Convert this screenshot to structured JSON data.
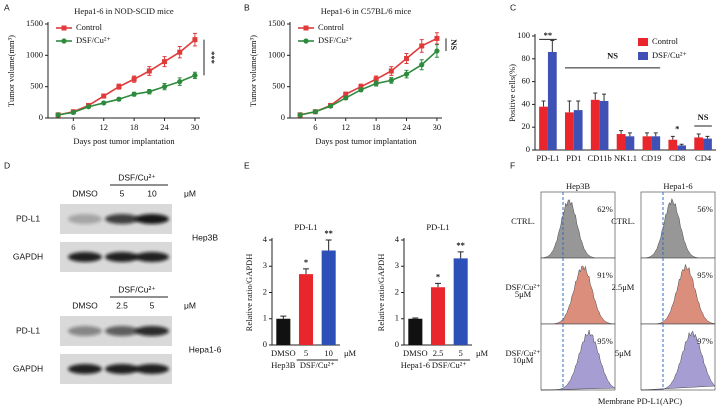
{
  "panel_labels": [
    "A",
    "B",
    "C",
    "D",
    "E",
    "F"
  ],
  "chart_data": [
    {
      "type": "line",
      "title": "Hepa1-6 in NOD-SCID mice",
      "xlabel": "Days post tumor implantation",
      "ylabel": "Tumor volume(mm³)",
      "x": [
        3,
        6,
        9,
        12,
        15,
        18,
        21,
        24,
        27,
        30
      ],
      "xlim": [
        1,
        31
      ],
      "xticks": [
        6,
        12,
        18,
        24,
        30
      ],
      "ylim": [
        0,
        1500
      ],
      "yticks": [
        0,
        500,
        1000,
        1500
      ],
      "legend": "upper left",
      "annotation": "***",
      "series": [
        {
          "name": "Control",
          "color": "#e03a3a",
          "marker": "square",
          "values": [
            50,
            100,
            200,
            350,
            500,
            620,
            750,
            900,
            1050,
            1250
          ],
          "errors": [
            10,
            15,
            20,
            30,
            40,
            50,
            70,
            80,
            90,
            100
          ]
        },
        {
          "name": "DSF/Cu²⁺",
          "color": "#2e8b3e",
          "marker": "circle",
          "values": [
            50,
            90,
            180,
            240,
            300,
            380,
            420,
            500,
            580,
            680
          ],
          "errors": [
            8,
            10,
            15,
            20,
            25,
            30,
            35,
            50,
            60,
            50
          ]
        }
      ]
    },
    {
      "type": "line",
      "title": "Hepa1-6 in C57BL/6 mice",
      "xlabel": "Days post tumor implantation",
      "ylabel": "Tumor volume(mm³)",
      "x": [
        3,
        6,
        9,
        12,
        15,
        18,
        21,
        24,
        27,
        30
      ],
      "xlim": [
        1,
        31
      ],
      "xticks": [
        6,
        12,
        18,
        24,
        30
      ],
      "ylim": [
        0,
        1500
      ],
      "yticks": [
        0,
        500,
        1000,
        1500
      ],
      "legend": "upper left",
      "annotation": "NS",
      "series": [
        {
          "name": "Control",
          "color": "#e03a3a",
          "marker": "square",
          "values": [
            50,
            100,
            200,
            380,
            500,
            620,
            750,
            950,
            1150,
            1270
          ],
          "errors": [
            10,
            15,
            20,
            30,
            40,
            50,
            70,
            80,
            100,
            90
          ]
        },
        {
          "name": "DSF/Cu²⁺",
          "color": "#2e8b3e",
          "marker": "circle",
          "values": [
            50,
            100,
            190,
            320,
            450,
            550,
            600,
            700,
            850,
            1070
          ],
          "errors": [
            8,
            10,
            15,
            25,
            30,
            40,
            45,
            60,
            80,
            100
          ]
        }
      ]
    },
    {
      "type": "grouped_bar",
      "ylabel": "Positive cells(%)",
      "categories": [
        "PD-L1",
        "PD1",
        "CD11b",
        "NK1.1",
        "CD19",
        "CD8",
        "CD4"
      ],
      "ylim": [
        0,
        100
      ],
      "yticks": [
        0,
        20,
        40,
        60,
        80,
        100
      ],
      "legend": "upper right",
      "annotations": [
        "**",
        "NS",
        "*",
        "NS"
      ],
      "series": [
        {
          "name": "Control",
          "color": "#e8262c",
          "values": [
            38,
            33,
            44,
            14,
            12,
            9,
            11
          ],
          "errors": [
            5,
            10,
            6,
            3,
            3,
            3,
            3
          ]
        },
        {
          "name": "DSF/Cu²⁺",
          "color": "#3f51b5",
          "values": [
            86,
            35,
            43,
            12,
            12,
            4,
            10
          ],
          "errors": [
            10,
            8,
            6,
            3,
            3,
            1,
            2
          ]
        }
      ]
    },
    {
      "type": "bar",
      "title": "PD-L1",
      "ylabel": "Relative ratio/GAPDH",
      "categories": [
        "DMSO",
        "5",
        "10"
      ],
      "unit": "μM",
      "cell_line": "Hep3B",
      "treatment": "DSF/Cu²⁺",
      "values": [
        1.0,
        2.7,
        3.6
      ],
      "errors": [
        0.1,
        0.2,
        0.4
      ],
      "colors": [
        "#111111",
        "#e8262c",
        "#2d4fb8"
      ],
      "value_annotations": [
        null,
        "*",
        "**"
      ],
      "ylim": [
        0,
        4
      ],
      "yticks": [
        0,
        1,
        2,
        3,
        4
      ]
    },
    {
      "type": "bar",
      "title": "PD-L1",
      "ylabel": "Relative ratio/GAPDH",
      "categories": [
        "DMSO",
        "2.5",
        "5"
      ],
      "unit": "μM",
      "cell_line": "Hepa1-6",
      "treatment": "DSF/Cu²⁺",
      "values": [
        1.0,
        2.2,
        3.3
      ],
      "errors": [
        0.03,
        0.15,
        0.25
      ],
      "colors": [
        "#111111",
        "#e8262c",
        "#2d4fb8"
      ],
      "value_annotations": [
        null,
        "*",
        "**"
      ],
      "ylim": [
        0,
        4
      ],
      "yticks": [
        0,
        1,
        2,
        3,
        4
      ]
    }
  ],
  "blots": [
    {
      "treatment": "DSF/Cu²⁺",
      "lanes": [
        "DMSO",
        "5",
        "10"
      ],
      "unit": "μM",
      "rows": [
        "PD-L1",
        "GAPDH"
      ],
      "cell_line": "Hep3B"
    },
    {
      "treatment": "DSF/Cu²⁺",
      "lanes": [
        "DMSO",
        "2.5",
        "5"
      ],
      "unit": "μM",
      "rows": [
        "PD-L1",
        "GAPDH"
      ],
      "cell_line": "Hepa1-6"
    }
  ],
  "flow": {
    "xlabel": "Membrane PD-L1(APC)",
    "columns": [
      {
        "title": "Hep3B",
        "rows": [
          {
            "label": [
              "CTRL."
            ],
            "percent": "62%"
          },
          {
            "label": [
              "DSF/Cu²⁺",
              "5μM"
            ],
            "percent": "91%"
          },
          {
            "label": [
              "DSF/Cu²⁺",
              "10μM"
            ],
            "percent": "95%"
          }
        ]
      },
      {
        "title": "Hepa1-6",
        "rows": [
          {
            "label": [
              "CTRL."
            ],
            "percent": "56%"
          },
          {
            "label": [
              "2.5μM"
            ],
            "percent": "95%"
          },
          {
            "label": [
              "5μM"
            ],
            "percent": "97%"
          }
        ]
      }
    ]
  }
}
